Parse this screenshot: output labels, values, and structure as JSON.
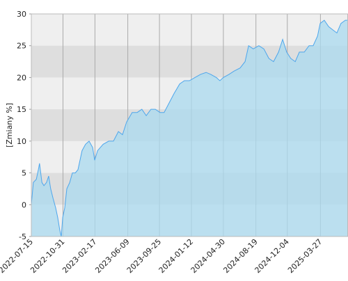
{
  "chart_data": {
    "type": "area",
    "y_label": "[Zmiany %]",
    "x": [
      "2022-07-15",
      "2022-07-22",
      "2022-08-01",
      "2022-08-08",
      "2022-08-12",
      "2022-08-20",
      "2022-08-27",
      "2022-09-05",
      "2022-09-12",
      "2022-09-19",
      "2022-09-27",
      "2022-10-06",
      "2022-10-13",
      "2022-10-20",
      "2022-10-25",
      "2022-10-30",
      "2022-11-06",
      "2022-11-13",
      "2022-11-23",
      "2022-12-02",
      "2022-12-12",
      "2022-12-21",
      "2023-01-04",
      "2023-01-16",
      "2023-01-28",
      "2023-02-09",
      "2023-02-16",
      "2023-02-26",
      "2023-03-17",
      "2023-04-05",
      "2023-04-21",
      "2023-05-08",
      "2023-05-22",
      "2023-06-05",
      "2023-06-24",
      "2023-07-11",
      "2023-07-27",
      "2023-08-11",
      "2023-08-27",
      "2023-09-11",
      "2023-09-27",
      "2023-10-11",
      "2023-10-28",
      "2023-11-14",
      "2023-12-03",
      "2023-12-19",
      "2024-01-05",
      "2024-01-24",
      "2024-02-12",
      "2024-03-02",
      "2024-03-18",
      "2024-04-06",
      "2024-04-18",
      "2024-04-30",
      "2024-05-19",
      "2024-06-05",
      "2024-06-26",
      "2024-07-13",
      "2024-07-25",
      "2024-08-10",
      "2024-08-29",
      "2024-09-15",
      "2024-10-02",
      "2024-10-18",
      "2024-11-04",
      "2024-11-18",
      "2024-12-02",
      "2024-12-16",
      "2024-12-31",
      "2025-01-14",
      "2025-01-31",
      "2025-02-16",
      "2025-03-02",
      "2025-03-17",
      "2025-03-26",
      "2025-04-09",
      "2025-04-24",
      "2025-05-08",
      "2025-05-22",
      "2025-06-05",
      "2025-06-20",
      "2025-06-29"
    ],
    "values": [
      0,
      3.5,
      4,
      5.5,
      6.5,
      3.5,
      3,
      3.5,
      4.5,
      2.5,
      1,
      -0.5,
      -2,
      -4,
      -5,
      -2,
      -0.5,
      2.5,
      3.5,
      5,
      5,
      5.5,
      8.5,
      9.5,
      10,
      9,
      7,
      8.5,
      9.5,
      10,
      10,
      11.5,
      11,
      13,
      14.5,
      14.5,
      15,
      14,
      15,
      15,
      14.5,
      14.5,
      16,
      17.5,
      19,
      19.5,
      19.5,
      20,
      20.5,
      20.8,
      20.5,
      20,
      19.5,
      20,
      20.5,
      21,
      21.5,
      22.5,
      25,
      24.5,
      25,
      24.5,
      23,
      22.5,
      24,
      26,
      24,
      23,
      22.5,
      24,
      24,
      25,
      25,
      26.5,
      28.5,
      29,
      28,
      27.5,
      27,
      28.5,
      29,
      29
    ],
    "color": "#4da6ec",
    "fill_color": "#a9d9ef",
    "xlim": [
      "2022-07-15",
      "2025-06-29"
    ],
    "xticks": [
      "2022-07-15",
      "2022-10-31",
      "2023-02-17",
      "2023-06-09",
      "2023-09-25",
      "2024-01-12",
      "2024-04-30",
      "2024-08-19",
      "2024-12-04",
      "2025-03-27"
    ],
    "ylim": [
      -5,
      30
    ],
    "yticks": [
      -5,
      0,
      5,
      10,
      15,
      20,
      25,
      30
    ],
    "grid": true,
    "bands": true
  }
}
